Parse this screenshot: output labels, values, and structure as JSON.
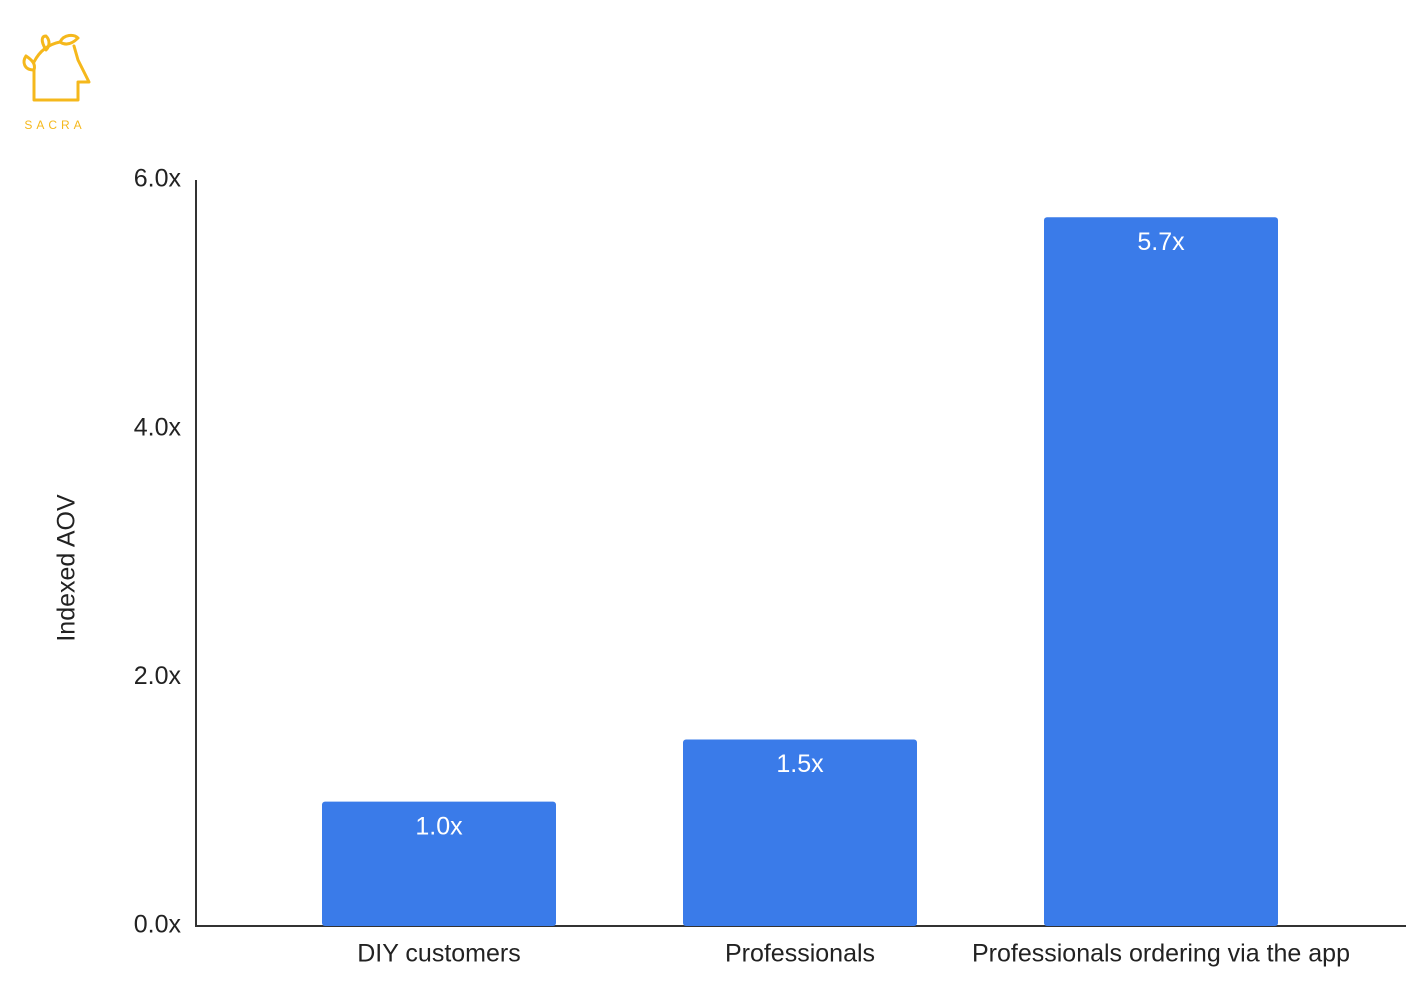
{
  "brand": "SACRA",
  "chart_data": {
    "type": "bar",
    "y_label": "Indexed AOV",
    "categories": [
      "DIY customers",
      "Professionals",
      "Professionals ordering via the app"
    ],
    "values": [
      1.0,
      1.5,
      5.7
    ],
    "value_labels": [
      "1.0x",
      "1.5x",
      "5.7x"
    ],
    "color": "#3a7be9",
    "ylim": [
      0,
      6
    ],
    "yticks": [
      {
        "value": 0,
        "label": "0.0x"
      },
      {
        "value": 2,
        "label": "2.0x"
      },
      {
        "value": 4,
        "label": "4.0x"
      },
      {
        "value": 6,
        "label": "6.0x"
      }
    ],
    "grid": false
  }
}
